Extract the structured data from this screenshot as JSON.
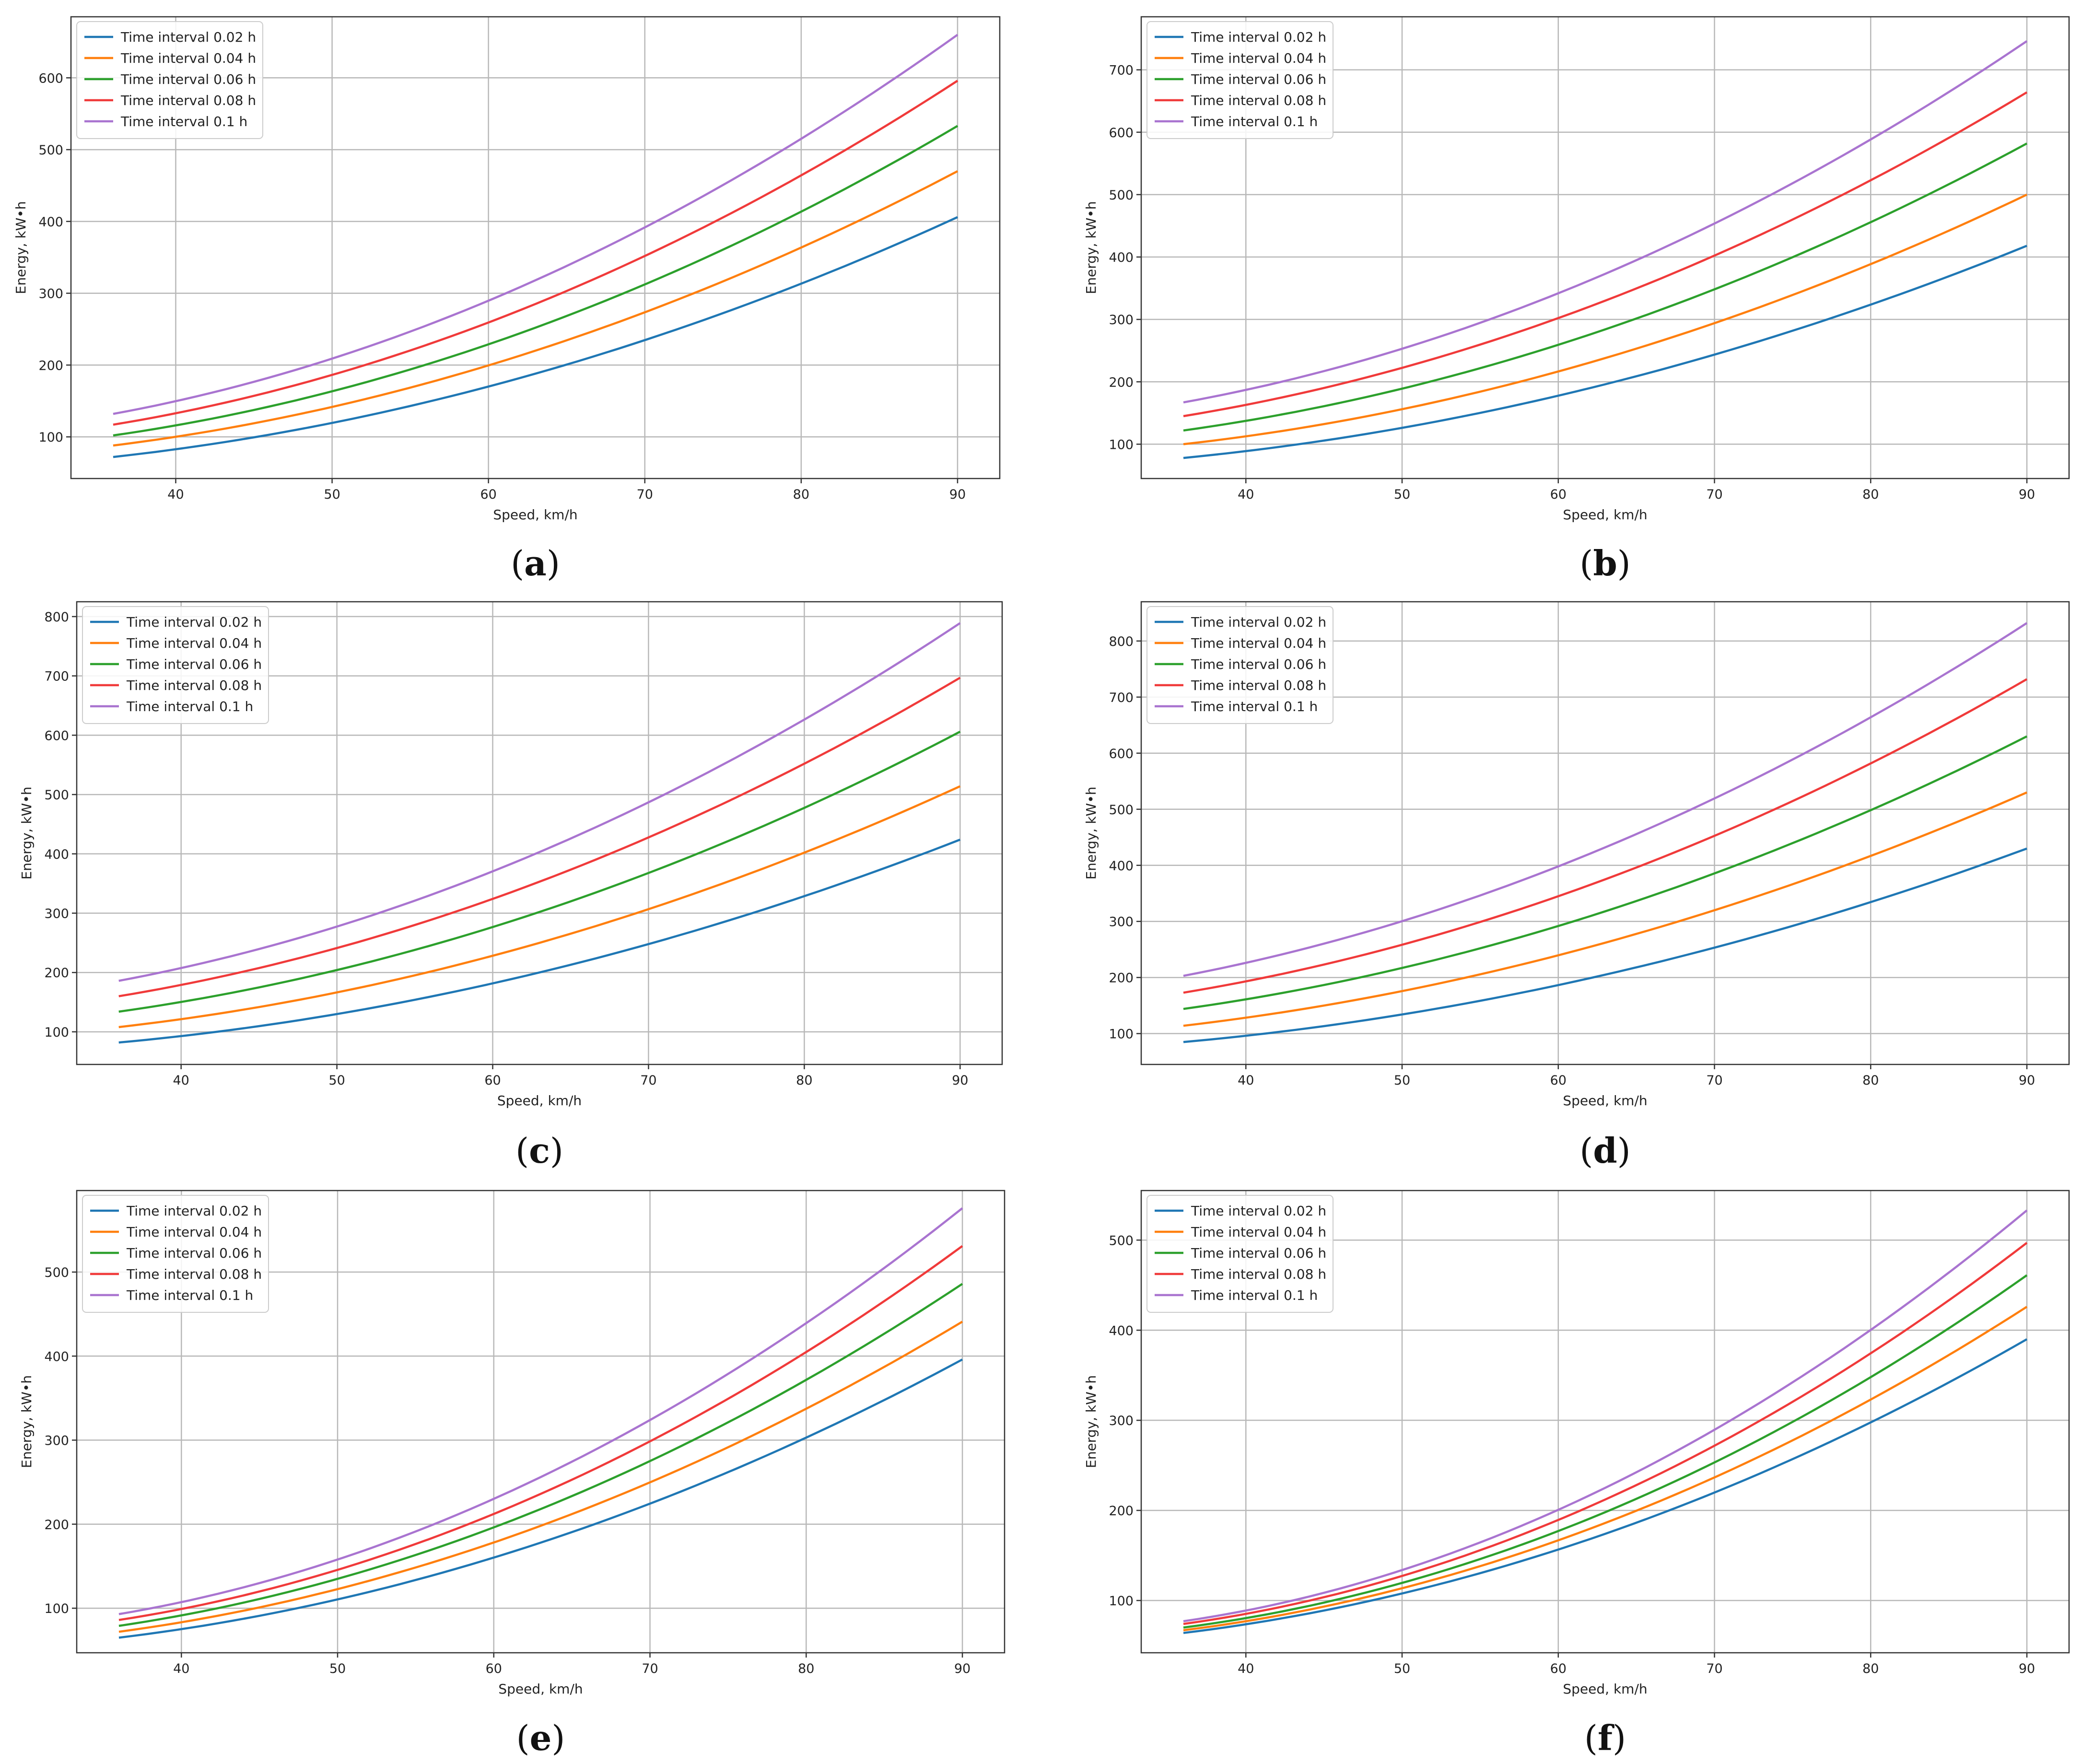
{
  "figure": {
    "colors": {
      "series": [
        "#1f77b4",
        "#ff7f0e",
        "#2ca02c",
        "#f03a3a",
        "#a974d0"
      ],
      "grid": "#b8b8b8",
      "frame": "#333333",
      "text": "#222222"
    }
  },
  "chart_data": [
    {
      "type": "line",
      "caption": "a",
      "xlabel": "Speed, km/h",
      "ylabel": "Energy, kW•h",
      "xlim": [
        33.3,
        92.7
      ],
      "ylim": [
        42,
        685
      ],
      "xticks": [
        40,
        50,
        60,
        70,
        80,
        90
      ],
      "yticks": [
        100,
        200,
        300,
        400,
        500,
        600
      ],
      "grid": true,
      "legend_position": "top-left",
      "x": [
        36,
        90
      ],
      "series": [
        {
          "name": "Time interval 0.02 h",
          "start": 72,
          "mid": 188,
          "end": 406,
          "values": [
            72,
            406
          ]
        },
        {
          "name": "Time interval 0.04 h",
          "start": 88,
          "mid": 220,
          "end": 470,
          "values": [
            88,
            470
          ]
        },
        {
          "name": "Time interval 0.06 h",
          "start": 102,
          "mid": 252,
          "end": 533,
          "values": [
            102,
            533
          ]
        },
        {
          "name": "Time interval 0.08 h",
          "start": 117,
          "mid": 285,
          "end": 596,
          "values": [
            117,
            596
          ]
        },
        {
          "name": "Time interval 0.1 h",
          "start": 132,
          "mid": 318,
          "end": 660,
          "values": [
            132,
            660
          ]
        }
      ]
    },
    {
      "type": "line",
      "caption": "b",
      "xlabel": "Speed, km/h",
      "ylabel": "Energy, kW•h",
      "xlim": [
        33.3,
        92.7
      ],
      "ylim": [
        45,
        785
      ],
      "xticks": [
        40,
        50,
        60,
        70,
        80,
        90
      ],
      "yticks": [
        100,
        200,
        300,
        400,
        500,
        600,
        700
      ],
      "grid": true,
      "legend_position": "top-left",
      "x": [
        36,
        90
      ],
      "series": [
        {
          "name": "Time interval 0.02 h",
          "start": 78,
          "mid": 196,
          "end": 418,
          "values": [
            78,
            418
          ]
        },
        {
          "name": "Time interval 0.04 h",
          "start": 100,
          "mid": 238,
          "end": 500,
          "values": [
            100,
            500
          ]
        },
        {
          "name": "Time interval 0.06 h",
          "start": 122,
          "mid": 284,
          "end": 582,
          "values": [
            122,
            582
          ]
        },
        {
          "name": "Time interval 0.08 h",
          "start": 145,
          "mid": 330,
          "end": 664,
          "values": [
            145,
            664
          ]
        },
        {
          "name": "Time interval 0.1 h",
          "start": 167,
          "mid": 373,
          "end": 746,
          "values": [
            167,
            746
          ]
        }
      ]
    },
    {
      "type": "line",
      "caption": "c",
      "xlabel": "Speed, km/h",
      "ylabel": "Energy, kW•h",
      "xlim": [
        33.3,
        92.7
      ],
      "ylim": [
        45,
        825
      ],
      "xticks": [
        40,
        50,
        60,
        70,
        80,
        90
      ],
      "yticks": [
        100,
        200,
        300,
        400,
        500,
        600,
        700,
        800
      ],
      "grid": true,
      "legend_position": "top-left",
      "x": [
        36,
        90
      ],
      "series": [
        {
          "name": "Time interval 0.02 h",
          "start": 82,
          "mid": 200,
          "end": 424,
          "values": [
            82,
            424
          ]
        },
        {
          "name": "Time interval 0.04 h",
          "start": 108,
          "mid": 250,
          "end": 514,
          "values": [
            108,
            514
          ]
        },
        {
          "name": "Time interval 0.06 h",
          "start": 134,
          "mid": 302,
          "end": 606,
          "values": [
            134,
            606
          ]
        },
        {
          "name": "Time interval 0.08 h",
          "start": 160,
          "mid": 353,
          "end": 697,
          "values": [
            160,
            697
          ]
        },
        {
          "name": "Time interval 0.1 h",
          "start": 186,
          "mid": 403,
          "end": 789,
          "values": [
            186,
            789
          ]
        }
      ]
    },
    {
      "type": "line",
      "caption": "d",
      "xlabel": "Speed, km/h",
      "ylabel": "Energy, kW•h",
      "xlim": [
        33.3,
        92.7
      ],
      "ylim": [
        45,
        870
      ],
      "xticks": [
        40,
        50,
        60,
        70,
        80,
        90
      ],
      "yticks": [
        100,
        200,
        300,
        400,
        500,
        600,
        700,
        800
      ],
      "grid": true,
      "legend_position": "top-left",
      "x": [
        36,
        90
      ],
      "series": [
        {
          "name": "Time interval 0.02 h",
          "start": 85,
          "mid": 205,
          "end": 430,
          "values": [
            85,
            430
          ]
        },
        {
          "name": "Time interval 0.04 h",
          "start": 114,
          "mid": 262,
          "end": 530,
          "values": [
            114,
            530
          ]
        },
        {
          "name": "Time interval 0.06 h",
          "start": 144,
          "mid": 318,
          "end": 630,
          "values": [
            144,
            630
          ]
        },
        {
          "name": "Time interval 0.08 h",
          "start": 173,
          "mid": 375,
          "end": 732,
          "values": [
            173,
            732
          ]
        },
        {
          "name": "Time interval 0.1 h",
          "start": 203,
          "mid": 432,
          "end": 832,
          "values": [
            203,
            832
          ]
        }
      ]
    },
    {
      "type": "line",
      "caption": "e",
      "xlabel": "Speed, km/h",
      "ylabel": "Energy, kW•h",
      "xlim": [
        33.3,
        92.7
      ],
      "ylim": [
        47,
        597
      ],
      "xticks": [
        40,
        50,
        60,
        70,
        80,
        90
      ],
      "yticks": [
        100,
        200,
        300,
        400,
        500
      ],
      "grid": true,
      "legend_position": "top-left",
      "x": [
        36,
        90
      ],
      "series": [
        {
          "name": "Time interval 0.02 h",
          "start": 65,
          "mid": 178,
          "end": 396,
          "values": [
            65,
            396
          ]
        },
        {
          "name": "Time interval 0.04 h",
          "start": 72,
          "mid": 198,
          "end": 441,
          "values": [
            72,
            441
          ]
        },
        {
          "name": "Time interval 0.06 h",
          "start": 79,
          "mid": 218,
          "end": 486,
          "values": [
            79,
            486
          ]
        },
        {
          "name": "Time interval 0.08 h",
          "start": 86,
          "mid": 236,
          "end": 531,
          "values": [
            86,
            531
          ]
        },
        {
          "name": "Time interval 0.1 h",
          "start": 93,
          "mid": 256,
          "end": 576,
          "values": [
            93,
            576
          ]
        }
      ]
    },
    {
      "type": "line",
      "caption": "f",
      "xlabel": "Speed, km/h",
      "ylabel": "Energy, kW•h",
      "xlim": [
        33.3,
        92.7
      ],
      "ylim": [
        42,
        555
      ],
      "xticks": [
        40,
        50,
        60,
        70,
        80,
        90
      ],
      "yticks": [
        100,
        200,
        300,
        400,
        500
      ],
      "grid": true,
      "legend_position": "top-left",
      "x": [
        36,
        90
      ],
      "series": [
        {
          "name": "Time interval 0.02 h",
          "start": 64,
          "mid": 174,
          "end": 390,
          "values": [
            64,
            390
          ]
        },
        {
          "name": "Time interval 0.04 h",
          "start": 67,
          "mid": 186,
          "end": 426,
          "values": [
            67,
            426
          ]
        },
        {
          "name": "Time interval 0.06 h",
          "start": 70,
          "mid": 198,
          "end": 461,
          "values": [
            70,
            461
          ]
        },
        {
          "name": "Time interval 0.08 h",
          "start": 74,
          "mid": 212,
          "end": 497,
          "values": [
            74,
            497
          ]
        },
        {
          "name": "Time interval 0.1 h",
          "start": 77,
          "mid": 225,
          "end": 533,
          "values": [
            77,
            533
          ]
        }
      ]
    }
  ]
}
